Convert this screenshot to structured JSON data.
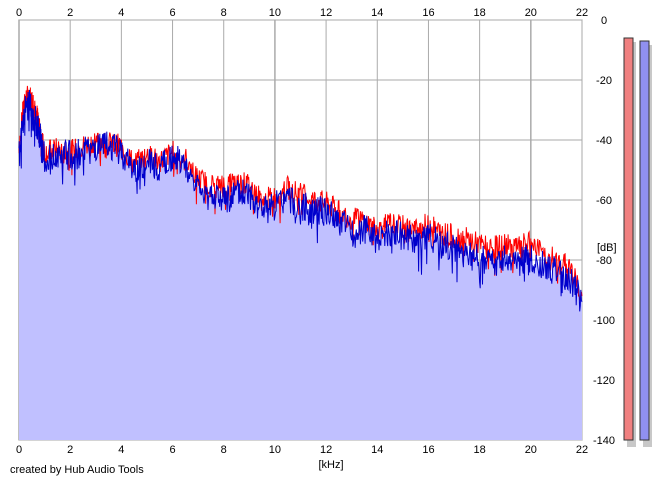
{
  "credit": "created by Hub Audio Tools",
  "chart_data": {
    "type": "line",
    "title": "",
    "xlabel": "[kHz]",
    "ylabel": "[dB]",
    "xlim": [
      0,
      22
    ],
    "ylim": [
      -140,
      0
    ],
    "x_ticks": [
      "0",
      "2",
      "4",
      "6",
      "8",
      "10",
      "12",
      "14",
      "16",
      "18",
      "20",
      "22"
    ],
    "y_ticks": [
      "0",
      "-20",
      "-40",
      "-60",
      "-80",
      "-100",
      "-120",
      "-140"
    ],
    "grid": true,
    "colors": {
      "left": "#ff0000",
      "right": "#0000cc",
      "fill": "#c0c0ff",
      "meter_left": "#f08080",
      "meter_right": "#9090f0",
      "grid": "#aaaaaa"
    },
    "series": [
      {
        "color": "#ff0000",
        "x": [
          0.0,
          0.2,
          0.4,
          0.6,
          0.8,
          1.0,
          1.5,
          2.0,
          2.5,
          3.0,
          3.5,
          4.0,
          4.5,
          5.0,
          5.5,
          6.0,
          6.5,
          7.0,
          7.5,
          8.0,
          8.5,
          9.0,
          9.5,
          10.0,
          10.5,
          11.0,
          11.5,
          12.0,
          12.5,
          13.0,
          13.5,
          14.0,
          14.5,
          15.0,
          15.5,
          16.0,
          16.5,
          17.0,
          17.5,
          18.0,
          18.5,
          19.0,
          19.5,
          20.0,
          20.5,
          21.0,
          21.5,
          22.0
        ],
        "y": [
          -42,
          -27,
          -25,
          -28,
          -35,
          -44,
          -43,
          -44,
          -42,
          -40,
          -41,
          -42,
          -48,
          -45,
          -47,
          -44,
          -46,
          -53,
          -55,
          -55,
          -54,
          -55,
          -60,
          -59,
          -56,
          -58,
          -60,
          -61,
          -64,
          -66,
          -67,
          -70,
          -68,
          -69,
          -70,
          -68,
          -71,
          -72,
          -73,
          -75,
          -76,
          -75,
          -76,
          -74,
          -78,
          -80,
          -82,
          -92
        ]
      },
      {
        "color": "#0000cc",
        "x": [
          0.0,
          0.2,
          0.4,
          0.6,
          0.8,
          1.0,
          1.5,
          2.0,
          2.5,
          3.0,
          3.5,
          4.0,
          4.5,
          5.0,
          5.5,
          6.0,
          6.5,
          7.0,
          7.5,
          8.0,
          8.5,
          9.0,
          9.5,
          10.0,
          10.5,
          11.0,
          11.5,
          12.0,
          12.5,
          13.0,
          13.5,
          14.0,
          14.5,
          15.0,
          15.5,
          16.0,
          16.5,
          17.0,
          17.5,
          18.0,
          18.5,
          19.0,
          19.5,
          20.0,
          20.5,
          21.0,
          21.5,
          22.0
        ],
        "y": [
          -45,
          -30,
          -28,
          -32,
          -38,
          -46,
          -45,
          -45,
          -44,
          -43,
          -42,
          -44,
          -50,
          -48,
          -49,
          -46,
          -48,
          -56,
          -58,
          -60,
          -58,
          -58,
          -63,
          -62,
          -60,
          -62,
          -63,
          -64,
          -67,
          -70,
          -70,
          -72,
          -71,
          -72,
          -74,
          -72,
          -75,
          -76,
          -78,
          -80,
          -81,
          -80,
          -81,
          -79,
          -82,
          -84,
          -86,
          -94
        ]
      }
    ]
  },
  "meters": {
    "left": {
      "color": "#f08080",
      "level_db": -6
    },
    "right": {
      "color": "#9090f0",
      "level_db": -7
    }
  }
}
